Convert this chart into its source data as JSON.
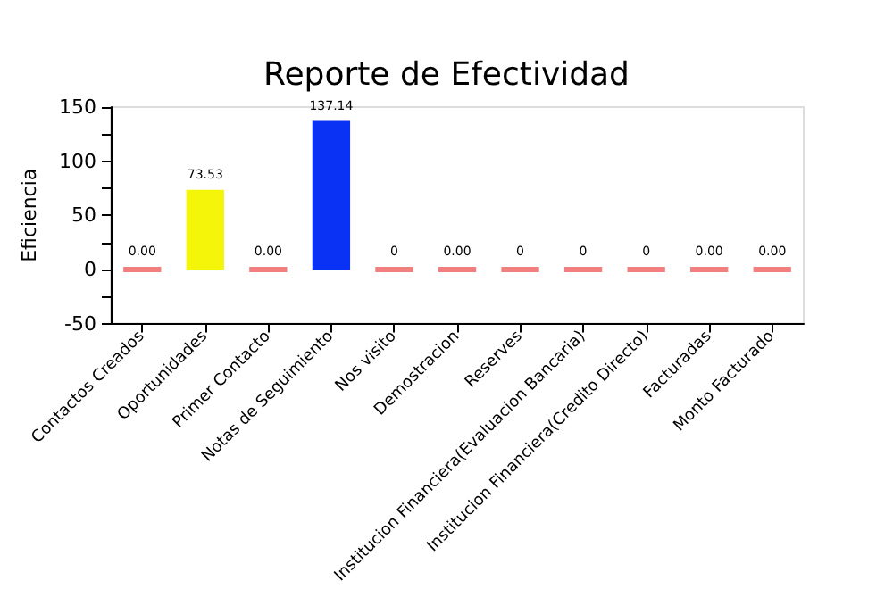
{
  "chart_data": {
    "type": "bar",
    "title": "Reporte de Efectividad",
    "ylabel": "Eficiencia",
    "categories": [
      "Contactos Creados",
      "Oportunidades",
      "Primer Contacto",
      "Notas de Seguimiento",
      "Nos visito",
      "Demostracion",
      "Reserves",
      "Institucion Financiera(Evaluacion Bancaria)",
      "Institucion Financiera(Credito Directo)",
      "Facturadas",
      "Monto Facturado"
    ],
    "values": [
      0,
      73.53,
      0,
      137.14,
      0,
      0,
      0,
      0,
      0,
      0,
      0
    ],
    "colors": [
      "#f08080",
      "#f5f50a",
      "#f08080",
      "#0a32f5",
      "#f08080",
      "#f08080",
      "#f08080",
      "#f08080",
      "#f08080",
      "#f08080",
      "#f08080"
    ],
    "value_labels": [
      "0.00",
      "73.53",
      "0.00",
      "137.14",
      "0",
      "0.00",
      "0",
      "0",
      "0",
      "0.00",
      "0.00"
    ],
    "ylim": [
      -50,
      150
    ],
    "yticks": [
      -50,
      {
        "value": -25,
        "label": null
      },
      0,
      {
        "value": 25,
        "label": null
      },
      50,
      {
        "value": 75,
        "label": null
      },
      100,
      {
        "value": 125,
        "label": null
      },
      150
    ],
    "grid": false
  }
}
